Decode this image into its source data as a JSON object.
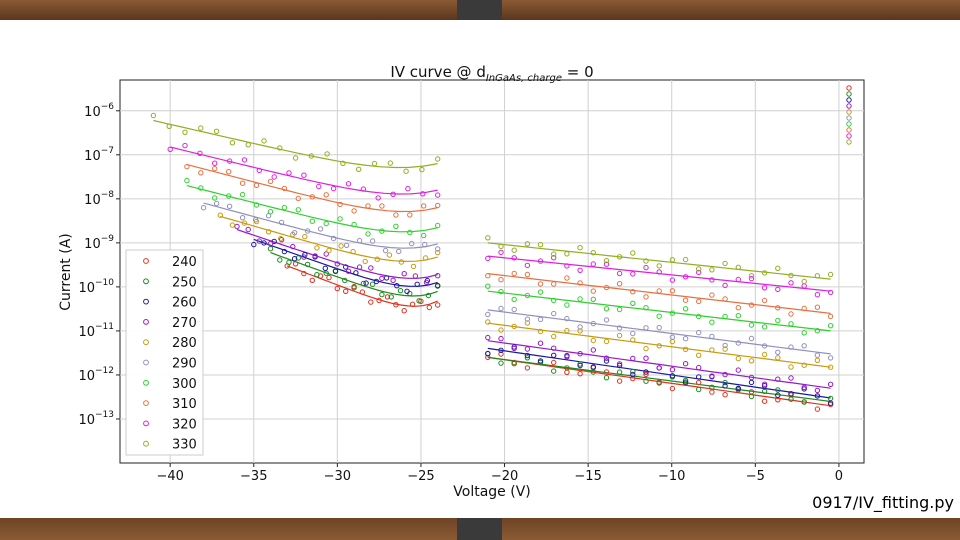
{
  "footer": {
    "label": "0917/IV_fitting.py"
  },
  "colors": {
    "240": "#e0301e",
    "250": "#1c8a1c",
    "260": "#1a1aa0",
    "270": "#9a18c8",
    "280": "#c89a10",
    "290": "#9090c0",
    "300": "#30d030",
    "310": "#e87040",
    "320": "#e020e0",
    "330": "#90b020"
  },
  "chart_data": {
    "type": "scatter",
    "title_prefix": "IV curve @ d",
    "title_sub": "InGaAs, charge",
    "title_suffix": " = 0",
    "xlabel": "Voltage (V)",
    "ylabel": "Current (A)",
    "yscale": "log",
    "xlim": [
      -43,
      1.5
    ],
    "ylim": [
      1e-14,
      5e-06
    ],
    "xticks": [
      -40,
      -35,
      -30,
      -25,
      -20,
      -15,
      -10,
      -5,
      0
    ],
    "xtick_labels": [
      "−40",
      "−35",
      "−30",
      "−25",
      "−20",
      "−15",
      "−10",
      "−5",
      "0"
    ],
    "yticks": [
      1e-13,
      1e-12,
      1e-11,
      1e-10,
      1e-09,
      1e-08,
      1e-07,
      1e-06
    ],
    "ytick_labels": [
      {
        "base": "10",
        "exp": "−13"
      },
      {
        "base": "10",
        "exp": "−12"
      },
      {
        "base": "10",
        "exp": "−11"
      },
      {
        "base": "10",
        "exp": "−10"
      },
      {
        "base": "10",
        "exp": "−9"
      },
      {
        "base": "10",
        "exp": "−8"
      },
      {
        "base": "10",
        "exp": "−7"
      },
      {
        "base": "10",
        "exp": "−6"
      }
    ],
    "grid": true,
    "legend_position": "lower-left",
    "series": [
      {
        "name": "240",
        "low_start": [
          -33,
          3e-10
        ],
        "low_end": [
          -24,
          1.5e-11
        ],
        "high_start": [
          -21,
          2.5e-12
        ],
        "high_end": [
          -0.5,
          2e-13
        ]
      },
      {
        "name": "250",
        "low_start": [
          -34,
          6e-10
        ],
        "low_end": [
          -24,
          2.5e-11
        ],
        "high_start": [
          -21,
          2.5e-12
        ],
        "high_end": [
          -0.5,
          2.5e-13
        ]
      },
      {
        "name": "260",
        "low_start": [
          -35,
          1.2e-09
        ],
        "low_end": [
          -24,
          4e-11
        ],
        "high_start": [
          -21,
          4e-12
        ],
        "high_end": [
          -0.5,
          3e-13
        ]
      },
      {
        "name": "270",
        "low_start": [
          -36,
          2e-09
        ],
        "low_end": [
          -24,
          6e-11
        ],
        "high_start": [
          -21,
          6e-12
        ],
        "high_end": [
          -0.5,
          5e-13
        ]
      },
      {
        "name": "280",
        "low_start": [
          -37,
          4e-09
        ],
        "low_end": [
          -24,
          1.5e-10
        ],
        "high_start": [
          -21,
          1.5e-11
        ],
        "high_end": [
          -0.5,
          1.5e-12
        ]
      },
      {
        "name": "290",
        "low_start": [
          -38,
          8e-09
        ],
        "low_end": [
          -24,
          3e-10
        ],
        "high_start": [
          -21,
          3e-11
        ],
        "high_end": [
          -0.5,
          3e-12
        ]
      },
      {
        "name": "300",
        "low_start": [
          -39,
          2e-08
        ],
        "low_end": [
          -24,
          7e-10
        ],
        "high_start": [
          -21,
          8e-11
        ],
        "high_end": [
          -0.5,
          1e-11
        ]
      },
      {
        "name": "310",
        "low_start": [
          -39,
          6e-08
        ],
        "low_end": [
          -24,
          2e-09
        ],
        "high_start": [
          -21,
          2e-10
        ],
        "high_end": [
          -0.5,
          2.5e-11
        ]
      },
      {
        "name": "320",
        "low_start": [
          -40,
          1.5e-07
        ],
        "low_end": [
          -24,
          5e-09
        ],
        "high_start": [
          -21,
          5e-10
        ],
        "high_end": [
          -0.5,
          8e-11
        ]
      },
      {
        "name": "330",
        "low_start": [
          -41,
          6e-07
        ],
        "low_end": [
          -24,
          2e-08
        ],
        "high_start": [
          -21,
          1e-09
        ],
        "high_end": [
          -0.5,
          1.5e-10
        ]
      }
    ]
  }
}
